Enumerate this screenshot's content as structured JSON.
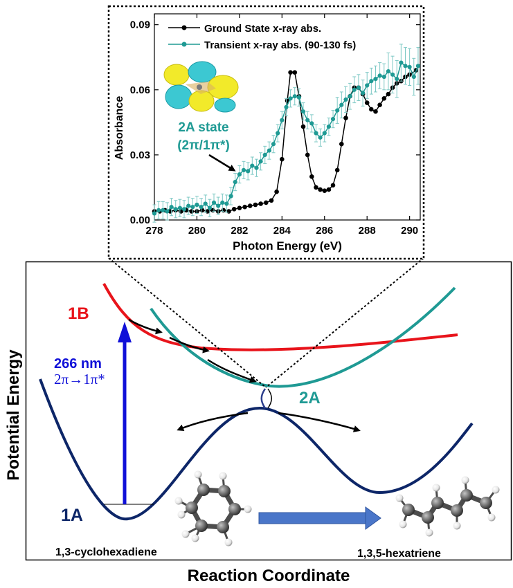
{
  "figure": {
    "y_axis_title": "Potential Energy",
    "x_axis_title": "Reaction Coordinate",
    "curve_labels": {
      "one_b": "1B",
      "two_a": "2A",
      "one_a": "1A"
    },
    "excitation": {
      "wavelength": "266 nm",
      "transition": "2π→1π*"
    },
    "molecules": {
      "left": "1,3-cyclohexadiene",
      "right": "1,3,5-hexatriene"
    },
    "colors": {
      "curve_1a": "#0d2668",
      "curve_1b": "#e8141b",
      "curve_2a": "#1f9a94",
      "excitation_arrow": "#1010d8",
      "product_arrow": "#4a76c9",
      "atom_carbon": "#6e6e6e",
      "atom_hydrogen": "#f0f0f0"
    }
  },
  "inset": {
    "orbital_label_line1": "2A state",
    "orbital_label_line2": "(2π/1π*)",
    "orbital_colors": {
      "lobe_yellow": "#f2ea2a",
      "lobe_cyan": "#3cc8d2"
    }
  },
  "chart_data": {
    "type": "line",
    "xlabel": "Photon Energy (eV)",
    "ylabel": "Absorbance",
    "xlim": [
      278,
      290.5
    ],
    "ylim": [
      0,
      0.095
    ],
    "xticks": [
      "278",
      "280",
      "282",
      "284",
      "286",
      "288",
      "290"
    ],
    "yticks": [
      "0.00",
      "0.03",
      "0.06",
      "0.09"
    ],
    "legend_position": "top-right",
    "grid": false,
    "series": [
      {
        "name": "Ground State x-ray abs.",
        "color": "#000000",
        "points": [
          [
            278,
            0.004
          ],
          [
            278.25,
            0.004
          ],
          [
            278.5,
            0.0045
          ],
          [
            278.75,
            0.004
          ],
          [
            279,
            0.0045
          ],
          [
            279.25,
            0.004
          ],
          [
            279.5,
            0.0045
          ],
          [
            279.75,
            0.004
          ],
          [
            280,
            0.004
          ],
          [
            280.25,
            0.0045
          ],
          [
            280.5,
            0.004
          ],
          [
            280.75,
            0.0045
          ],
          [
            281,
            0.004
          ],
          [
            281.25,
            0.0045
          ],
          [
            281.5,
            0.004
          ],
          [
            281.75,
            0.005
          ],
          [
            282,
            0.0055
          ],
          [
            282.25,
            0.006
          ],
          [
            282.5,
            0.0065
          ],
          [
            282.75,
            0.007
          ],
          [
            283,
            0.0075
          ],
          [
            283.25,
            0.008
          ],
          [
            283.5,
            0.009
          ],
          [
            283.75,
            0.013
          ],
          [
            284,
            0.028
          ],
          [
            284.25,
            0.055
          ],
          [
            284.4,
            0.068
          ],
          [
            284.6,
            0.068
          ],
          [
            284.8,
            0.057
          ],
          [
            285,
            0.043
          ],
          [
            285.2,
            0.03
          ],
          [
            285.4,
            0.02
          ],
          [
            285.6,
            0.015
          ],
          [
            285.8,
            0.014
          ],
          [
            286,
            0.0135
          ],
          [
            286.2,
            0.014
          ],
          [
            286.4,
            0.016
          ],
          [
            286.6,
            0.023
          ],
          [
            286.8,
            0.035
          ],
          [
            287,
            0.047
          ],
          [
            287.2,
            0.057
          ],
          [
            287.4,
            0.061
          ],
          [
            287.6,
            0.061
          ],
          [
            287.8,
            0.058
          ],
          [
            288,
            0.054
          ],
          [
            288.2,
            0.051
          ],
          [
            288.4,
            0.05
          ],
          [
            288.6,
            0.053
          ],
          [
            288.8,
            0.056
          ],
          [
            289,
            0.058
          ],
          [
            289.2,
            0.061
          ],
          [
            289.4,
            0.063
          ],
          [
            289.6,
            0.064
          ],
          [
            289.8,
            0.066
          ],
          [
            290,
            0.067
          ],
          [
            290.3,
            0.069
          ]
        ]
      },
      {
        "name": "Transient x-ray abs. (90-130 fs)",
        "color": "#1f9a94",
        "points": [
          [
            278,
            0.003
          ],
          [
            278.2,
            0.0045
          ],
          [
            278.4,
            0.0045
          ],
          [
            278.6,
            0.004
          ],
          [
            278.8,
            0.006
          ],
          [
            279,
            0.005
          ],
          [
            279.2,
            0.0055
          ],
          [
            279.4,
            0.005
          ],
          [
            279.6,
            0.0065
          ],
          [
            279.8,
            0.006
          ],
          [
            280,
            0.007
          ],
          [
            280.2,
            0.006
          ],
          [
            280.4,
            0.0075
          ],
          [
            280.6,
            0.0055
          ],
          [
            280.8,
            0.008
          ],
          [
            281,
            0.0065
          ],
          [
            281.2,
            0.008
          ],
          [
            281.4,
            0.0075
          ],
          [
            281.6,
            0.011
          ],
          [
            281.8,
            0.0175
          ],
          [
            282,
            0.021
          ],
          [
            282.2,
            0.023
          ],
          [
            282.4,
            0.0225
          ],
          [
            282.6,
            0.025
          ],
          [
            282.8,
            0.024
          ],
          [
            283,
            0.027
          ],
          [
            283.2,
            0.03
          ],
          [
            283.4,
            0.032
          ],
          [
            283.6,
            0.035
          ],
          [
            283.8,
            0.04
          ],
          [
            284,
            0.046
          ],
          [
            284.2,
            0.052
          ],
          [
            284.4,
            0.056
          ],
          [
            284.6,
            0.057
          ],
          [
            284.8,
            0.0565
          ],
          [
            285,
            0.05
          ],
          [
            285.2,
            0.046
          ],
          [
            285.4,
            0.0445
          ],
          [
            285.6,
            0.04
          ],
          [
            285.8,
            0.038
          ],
          [
            286,
            0.04
          ],
          [
            286.2,
            0.043
          ],
          [
            286.4,
            0.0465
          ],
          [
            286.6,
            0.0505
          ],
          [
            286.8,
            0.053
          ],
          [
            287,
            0.0555
          ],
          [
            287.2,
            0.057
          ],
          [
            287.4,
            0.06
          ],
          [
            287.6,
            0.061
          ],
          [
            287.8,
            0.0585
          ],
          [
            288,
            0.062
          ],
          [
            288.2,
            0.064
          ],
          [
            288.4,
            0.065
          ],
          [
            288.6,
            0.0665
          ],
          [
            288.8,
            0.066
          ],
          [
            289,
            0.0685
          ],
          [
            289.2,
            0.067
          ],
          [
            289.4,
            0.065
          ],
          [
            289.6,
            0.0725
          ],
          [
            289.8,
            0.071
          ],
          [
            290,
            0.0705
          ],
          [
            290.2,
            0.066
          ],
          [
            290.4,
            0.071
          ]
        ]
      }
    ]
  }
}
